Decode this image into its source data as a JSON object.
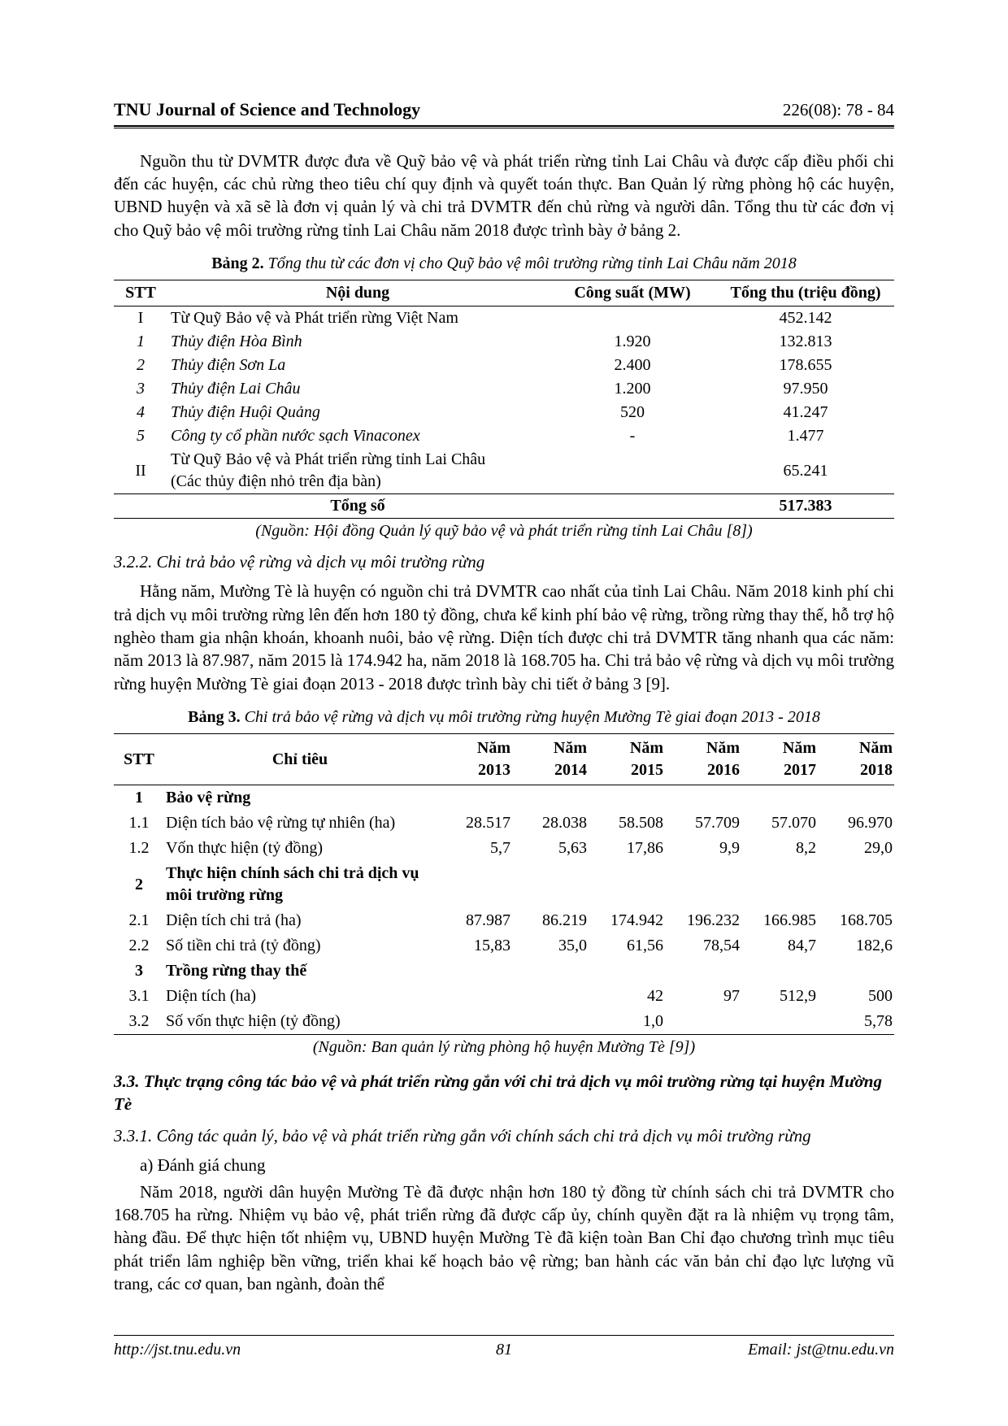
{
  "header": {
    "journal": "TNU Journal of Science and Technology",
    "issue": "226(08): 78 - 84"
  },
  "footer": {
    "url": "http://jst.tnu.edu.vn",
    "page": "81",
    "email": "Email: jst@tnu.edu.vn"
  },
  "para1": "Nguồn thu từ DVMTR được đưa về Quỹ bảo vệ và phát triển rừng tỉnh Lai Châu và được cấp điều phối chi đến các huyện, các chủ rừng theo tiêu chí quy định và quyết toán thực. Ban Quản lý rừng phòng hộ các huyện, UBND huyện và xã sẽ là đơn vị quản lý và chi trả DVMTR đến chủ rừng và người dân. Tổng thu từ các đơn vị cho Quỹ bảo vệ môi trường rừng tỉnh Lai Châu năm 2018 được trình bày ở bảng 2.",
  "table2": {
    "caption_bold": "Bảng 2.",
    "caption_title": "Tổng thu từ các đơn vị cho Quỹ bảo vệ môi trường rừng tỉnh Lai Châu năm 2018",
    "headers": [
      "STT",
      "Nội dung",
      "Công suất (MW)",
      "Tổng thu (triệu đồng)"
    ],
    "rows": [
      {
        "stt": "I",
        "nd": "Từ Quỹ Bảo vệ và Phát triển rừng Việt Nam",
        "mw": "",
        "thu": "452.142",
        "italic": false
      },
      {
        "stt": "1",
        "nd": "Thủy điện Hòa Bình",
        "mw": "1.920",
        "thu": "132.813",
        "italic": true
      },
      {
        "stt": "2",
        "nd": "Thủy điện Sơn La",
        "mw": "2.400",
        "thu": "178.655",
        "italic": true
      },
      {
        "stt": "3",
        "nd": "Thủy điện Lai Châu",
        "mw": "1.200",
        "thu": "97.950",
        "italic": true
      },
      {
        "stt": "4",
        "nd": "Thủy điện Huội Quảng",
        "mw": "520",
        "thu": "41.247",
        "italic": true
      },
      {
        "stt": "5",
        "nd": "Công ty cổ phần nước sạch Vinaconex",
        "mw": "-",
        "thu": "1.477",
        "italic": true
      },
      {
        "stt": "II",
        "nd": "Từ Quỹ Bảo vệ và Phát triển rừng tỉnh Lai Châu\n(Các thủy điện nhỏ trên địa bàn)",
        "mw": "",
        "thu": "65.241",
        "italic": false
      }
    ],
    "total": {
      "label": "Tổng số",
      "thu": "517.383"
    },
    "source": "(Nguồn: Hội đồng Quản lý quỹ bảo vệ và phát triển rừng tỉnh Lai Châu [8])"
  },
  "sec322": "3.2.2. Chi trả bảo vệ rừng và dịch vụ môi trường rừng",
  "para2": "Hằng năm, Mường Tè là huyện có nguồn chi trả DVMTR cao nhất của tỉnh Lai Châu. Năm 2018 kinh phí chi trả dịch vụ môi trường rừng lên đến hơn 180 tỷ đồng, chưa kể kinh phí bảo vệ rừng, trồng rừng thay thế, hỗ trợ hộ nghèo tham gia nhận khoán, khoanh nuôi, bảo vệ rừng. Diện tích được chi trả DVMTR tăng nhanh qua các năm: năm 2013 là 87.987, năm 2015 là 174.942 ha, năm 2018 là 168.705 ha. Chi trả bảo vệ rừng và dịch vụ môi trường rừng huyện Mường Tè giai đoạn 2013 - 2018 được trình bày chi tiết ở bảng 3 [9].",
  "table3": {
    "caption_bold": "Bảng 3.",
    "caption_title": "Chi trả bảo vệ rừng và dịch vụ môi trường rừng huyện Mường Tè giai đoạn 2013 - 2018",
    "headers": [
      "STT",
      "Chỉ tiêu",
      "Năm 2013",
      "Năm 2014",
      "Năm 2015",
      "Năm 2016",
      "Năm 2017",
      "Năm 2018"
    ],
    "rows": [
      {
        "stt": "1",
        "ct": "Bảo vệ rừng",
        "y": [
          "",
          "",
          "",
          "",
          "",
          ""
        ],
        "bold": true
      },
      {
        "stt": "1.1",
        "ct": "Diện tích bảo vệ rừng tự nhiên (ha)",
        "y": [
          "28.517",
          "28.038",
          "58.508",
          "57.709",
          "57.070",
          "96.970"
        ],
        "bold": false
      },
      {
        "stt": "1.2",
        "ct": "Vốn thực hiện (tỷ đồng)",
        "y": [
          "5,7",
          "5,63",
          "17,86",
          "9,9",
          "8,2",
          "29,0"
        ],
        "bold": false
      },
      {
        "stt": "2",
        "ct": "Thực hiện chính sách chi trả dịch vụ môi trường rừng",
        "y": [
          "",
          "",
          "",
          "",
          "",
          ""
        ],
        "bold": true
      },
      {
        "stt": "2.1",
        "ct": "Diện tích chi trả (ha)",
        "y": [
          "87.987",
          "86.219",
          "174.942",
          "196.232",
          "166.985",
          "168.705"
        ],
        "bold": false
      },
      {
        "stt": "2.2",
        "ct": "Số tiền chi trả (tỷ đồng)",
        "y": [
          "15,83",
          "35,0",
          "61,56",
          "78,54",
          "84,7",
          "182,6"
        ],
        "bold": false
      },
      {
        "stt": "3",
        "ct": "Trồng rừng thay thế",
        "y": [
          "",
          "",
          "",
          "",
          "",
          ""
        ],
        "bold": true
      },
      {
        "stt": "3.1",
        "ct": "Diện tích (ha)",
        "y": [
          "",
          "",
          "42",
          "97",
          "512,9",
          "500"
        ],
        "bold": false
      },
      {
        "stt": "3.2",
        "ct": "Số vốn thực hiện (tỷ đồng)",
        "y": [
          "",
          "",
          "1,0",
          "",
          "",
          "5,78"
        ],
        "bold": false
      }
    ],
    "source": "(Nguồn: Ban quản lý rừng phòng hộ huyện Mường Tè [9])"
  },
  "sec33": "3.3. Thực trạng công tác bảo vệ và phát triển rừng gắn với chi trả dịch vụ môi trường rừng tại huyện Mường Tè",
  "sec331": "3.3.1. Công tác quản lý, bảo vệ và phát triển rừng gắn với chính sách chi trả dịch vụ môi trường rừng",
  "para3a": "a) Đánh giá chung",
  "para3": "Năm 2018, người dân huyện Mường Tè đã được nhận hơn 180 tỷ đồng từ chính sách chi trả DVMTR cho 168.705 ha rừng. Nhiệm vụ bảo vệ, phát triển rừng đã được cấp ủy, chính quyền đặt ra là nhiệm vụ trọng tâm, hàng đầu. Để thực hiện tốt nhiệm vụ, UBND huyện Mường Tè đã kiện toàn Ban Chỉ đạo chương trình mục tiêu phát triển lâm nghiệp bền vững, triển khai kế hoạch bảo vệ rừng; ban hành các văn bản chỉ đạo lực lượng vũ trang, các cơ quan, ban ngành, đoàn thể"
}
